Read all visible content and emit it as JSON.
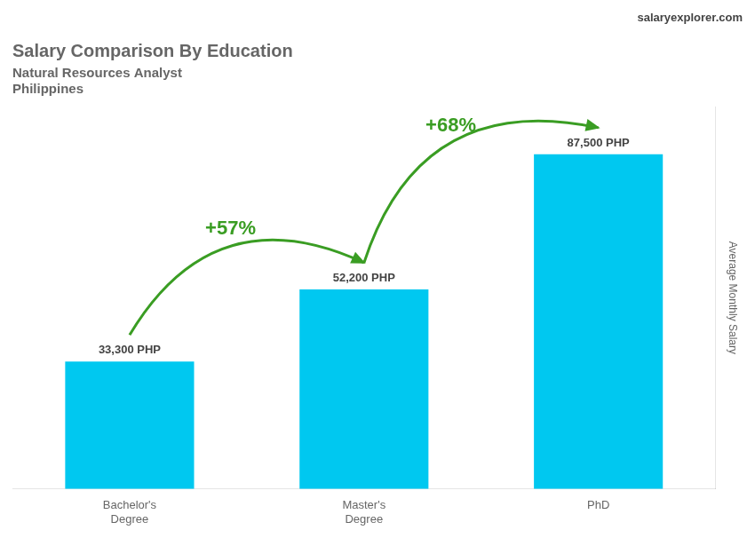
{
  "chart_data": {
    "type": "bar",
    "title": "Salary Comparison By Education",
    "subtitle": [
      "Natural Resources Analyst",
      "Philippines"
    ],
    "source": "salaryexplorer.com",
    "categories": [
      "Bachelor's\nDegree",
      "Master's\nDegree",
      "PhD"
    ],
    "values": [
      33300,
      52200,
      87500
    ],
    "value_labels": [
      "33,300 PHP",
      "52,200 PHP",
      "87,500 PHP"
    ],
    "data_labels": true,
    "color": "#00C8F0",
    "ylabel": "Average Monthly Salary",
    "ylim": [
      0,
      100000
    ],
    "tick_labels": "x",
    "grid": false,
    "annotations": [
      {
        "text": "+57%",
        "from": 0,
        "to": 1
      },
      {
        "text": "+68%",
        "from": 1,
        "to": 2
      }
    ]
  }
}
